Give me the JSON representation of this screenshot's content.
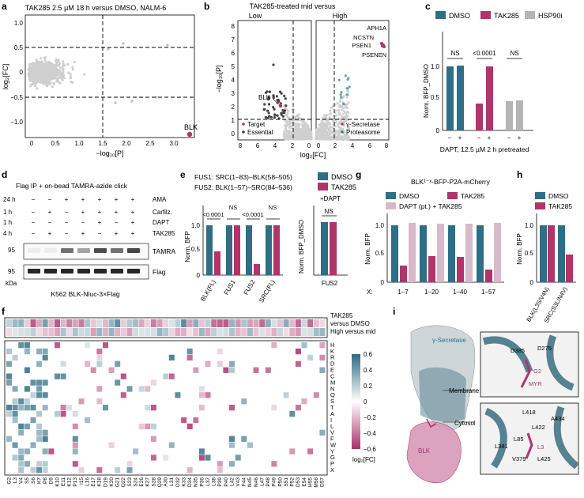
{
  "colors": {
    "dmso": "#2e6e86",
    "tak285": "#b0356b",
    "hsp90i": "#b5b5b5",
    "dapt": "#d9b8cc",
    "gray": "#cfcfcf",
    "magenta": "#b0356b",
    "teal": "#3a7d90"
  },
  "panel_a": {
    "label": "a",
    "title": "TAK285 2.5 µM 18 h versus DMSO, NALM-6",
    "ylabel": "log₂[FC]",
    "xlabel": "−log₁₀[P]",
    "xticks": [
      "0",
      "0.5",
      "1.0",
      "1.5",
      "2.0",
      "2.5",
      "3.0"
    ],
    "yticks": [
      "1.0",
      "0.5",
      "0",
      "−0.5",
      "−1.0"
    ],
    "highlight": "BLK"
  },
  "panel_b": {
    "label": "b",
    "title": "TAK285-treated mid versus",
    "left_header": "Low",
    "right_header": "High",
    "ylabel": "−log₁₀[P]",
    "xlabel": "log₂[FC]",
    "yticks": [
      "8",
      "7",
      "6",
      "5",
      "4",
      "3",
      "2",
      "1",
      "0"
    ],
    "xticks_left": [
      "8",
      "6",
      "4",
      "2",
      "0"
    ],
    "xticks_right": [
      "0",
      "2",
      "4",
      "6",
      "8"
    ],
    "labels_right": [
      "APH1A",
      "NCSTN",
      "PSEN1",
      "PSENEN"
    ],
    "label_left": "BLK",
    "legend_left": [
      "Target",
      "Essential"
    ],
    "legend_right": [
      "γ-Secretase",
      "Proteasome"
    ]
  },
  "panel_c": {
    "label": "c",
    "legend": [
      "DMSO",
      "TAK285",
      "HSP90i"
    ],
    "ylabel": "Norm. BFP_DMSO",
    "yticks": [
      "1.0",
      "0.5",
      "0"
    ],
    "sig": [
      "NS",
      "<0.0001",
      "NS"
    ],
    "xsigns": [
      "−",
      "+",
      "−",
      "+",
      "−",
      "+"
    ],
    "xlabel": "DAPT, 12.5 µM 2 h pretreated"
  },
  "panel_d": {
    "label": "d",
    "title": "Flag IP + on-bead TAMRA-azide click",
    "rows": [
      {
        "time": "24 h",
        "name": "AMA",
        "signs": [
          "−",
          "−",
          "+",
          "+",
          "+",
          "+",
          "+"
        ]
      },
      {
        "time": "1 h",
        "name": "Carfilz.",
        "signs": [
          "−",
          "+",
          "−",
          "+",
          "+",
          "+",
          "+"
        ]
      },
      {
        "time": "1 h",
        "name": "DAPT",
        "signs": [
          "−",
          "−",
          "−",
          "−",
          "+",
          "−",
          "+"
        ]
      },
      {
        "time": "4 h",
        "name": "TAK285",
        "signs": [
          "−",
          "+",
          "−",
          "+",
          "−",
          "+",
          "+"
        ]
      }
    ],
    "blots": [
      "TAMRA",
      "Flag"
    ],
    "mw": [
      "95",
      "95"
    ],
    "kda": "kDa",
    "footer": "K562 BLK-Nluc-3×Flag"
  },
  "panel_e": {
    "label": "e",
    "fus1": "FUS1: SRC(1–83)–BLK(58–505)",
    "fus2": "FUS2: BLK(1–57)–SRC(84–536)",
    "legend": [
      "DMSO",
      "TAK285"
    ],
    "ylabel": "Norm. BFP",
    "yticks": [
      "1.0",
      "0.5",
      "0"
    ],
    "categories": [
      "BLK(FL)",
      "FUS1",
      "FUS2",
      "SRC(FL)"
    ],
    "sig": [
      "<0.0001",
      "NS",
      "<0.0001",
      "NS"
    ],
    "right_title": "+DAPT",
    "right_ylabel": "Norm. BFP_DMSO",
    "right_cat": "FUS2",
    "right_sig": "NS"
  },
  "panel_g": {
    "label": "g",
    "title": "BLK¹⁻ˣ-BFP-P2A-mCherry",
    "legend": [
      "DMSO",
      "TAK285",
      "DAPT (pt.) + TAK285"
    ],
    "ylabel": "Norm. BFP",
    "yticks": [
      "1.0",
      "0.5",
      "0"
    ],
    "xprefix": "X:",
    "categories": [
      "1–7",
      "1–20",
      "1–40",
      "1–57"
    ]
  },
  "panel_h": {
    "label": "h",
    "legend": [
      "DMSO",
      "TAK285"
    ],
    "ylabel": "Norm. BFP",
    "yticks": [
      "1.0",
      "0.5",
      "0"
    ],
    "categories": [
      "BLK(L3S/V4N)",
      "SRC(S3L/N4V)"
    ]
  },
  "panel_f": {
    "label": "f",
    "top_label_1": "TAK285",
    "top_label_2": "versus DMSO",
    "top_label_3": "High versus mid",
    "aa": [
      "H",
      "K",
      "R",
      "D",
      "E",
      "C",
      "M",
      "N",
      "Q",
      "S",
      "T",
      "A",
      "I",
      "L",
      "V",
      "F",
      "W",
      "Y",
      "G",
      "P",
      "X"
    ],
    "positions": [
      "G2",
      "L3",
      "V4",
      "S5",
      "S6",
      "K7",
      "P8",
      "D9",
      "K10",
      "E11",
      "K12",
      "P13",
      "I15",
      "L16",
      "E17",
      "K18",
      "D19",
      "K20",
      "G21",
      "Q22",
      "S23",
      "S24",
      "E26",
      "K27",
      "S28",
      "Q29",
      "A30",
      "L31",
      "D32",
      "K33",
      "D34",
      "N35",
      "P36",
      "L37",
      "L38",
      "P39",
      "P40",
      "L42",
      "V43",
      "F44",
      "N45",
      "N46",
      "L47",
      "P48",
      "P49",
      "P50",
      "S51",
      "P52",
      "D53",
      "E54",
      "H55",
      "M56",
      "D57"
    ],
    "cbar_ticks": [
      "0.6",
      "0.4",
      "0.2",
      "0",
      "−0.2",
      "−0.4",
      "−0.6"
    ],
    "cbar_label": "log₂[FC]"
  },
  "panel_i": {
    "label": "i",
    "gsec": "γ-Secretase",
    "membrane": "Membrane",
    "cytosol": "Cytosol",
    "blk": "BLK",
    "inset1": [
      "D385",
      "D275",
      "G2",
      "MYR"
    ],
    "inset2": [
      "L418",
      "A434",
      "L422",
      "L85",
      "L381",
      "L3",
      "V379",
      "L425"
    ]
  }
}
